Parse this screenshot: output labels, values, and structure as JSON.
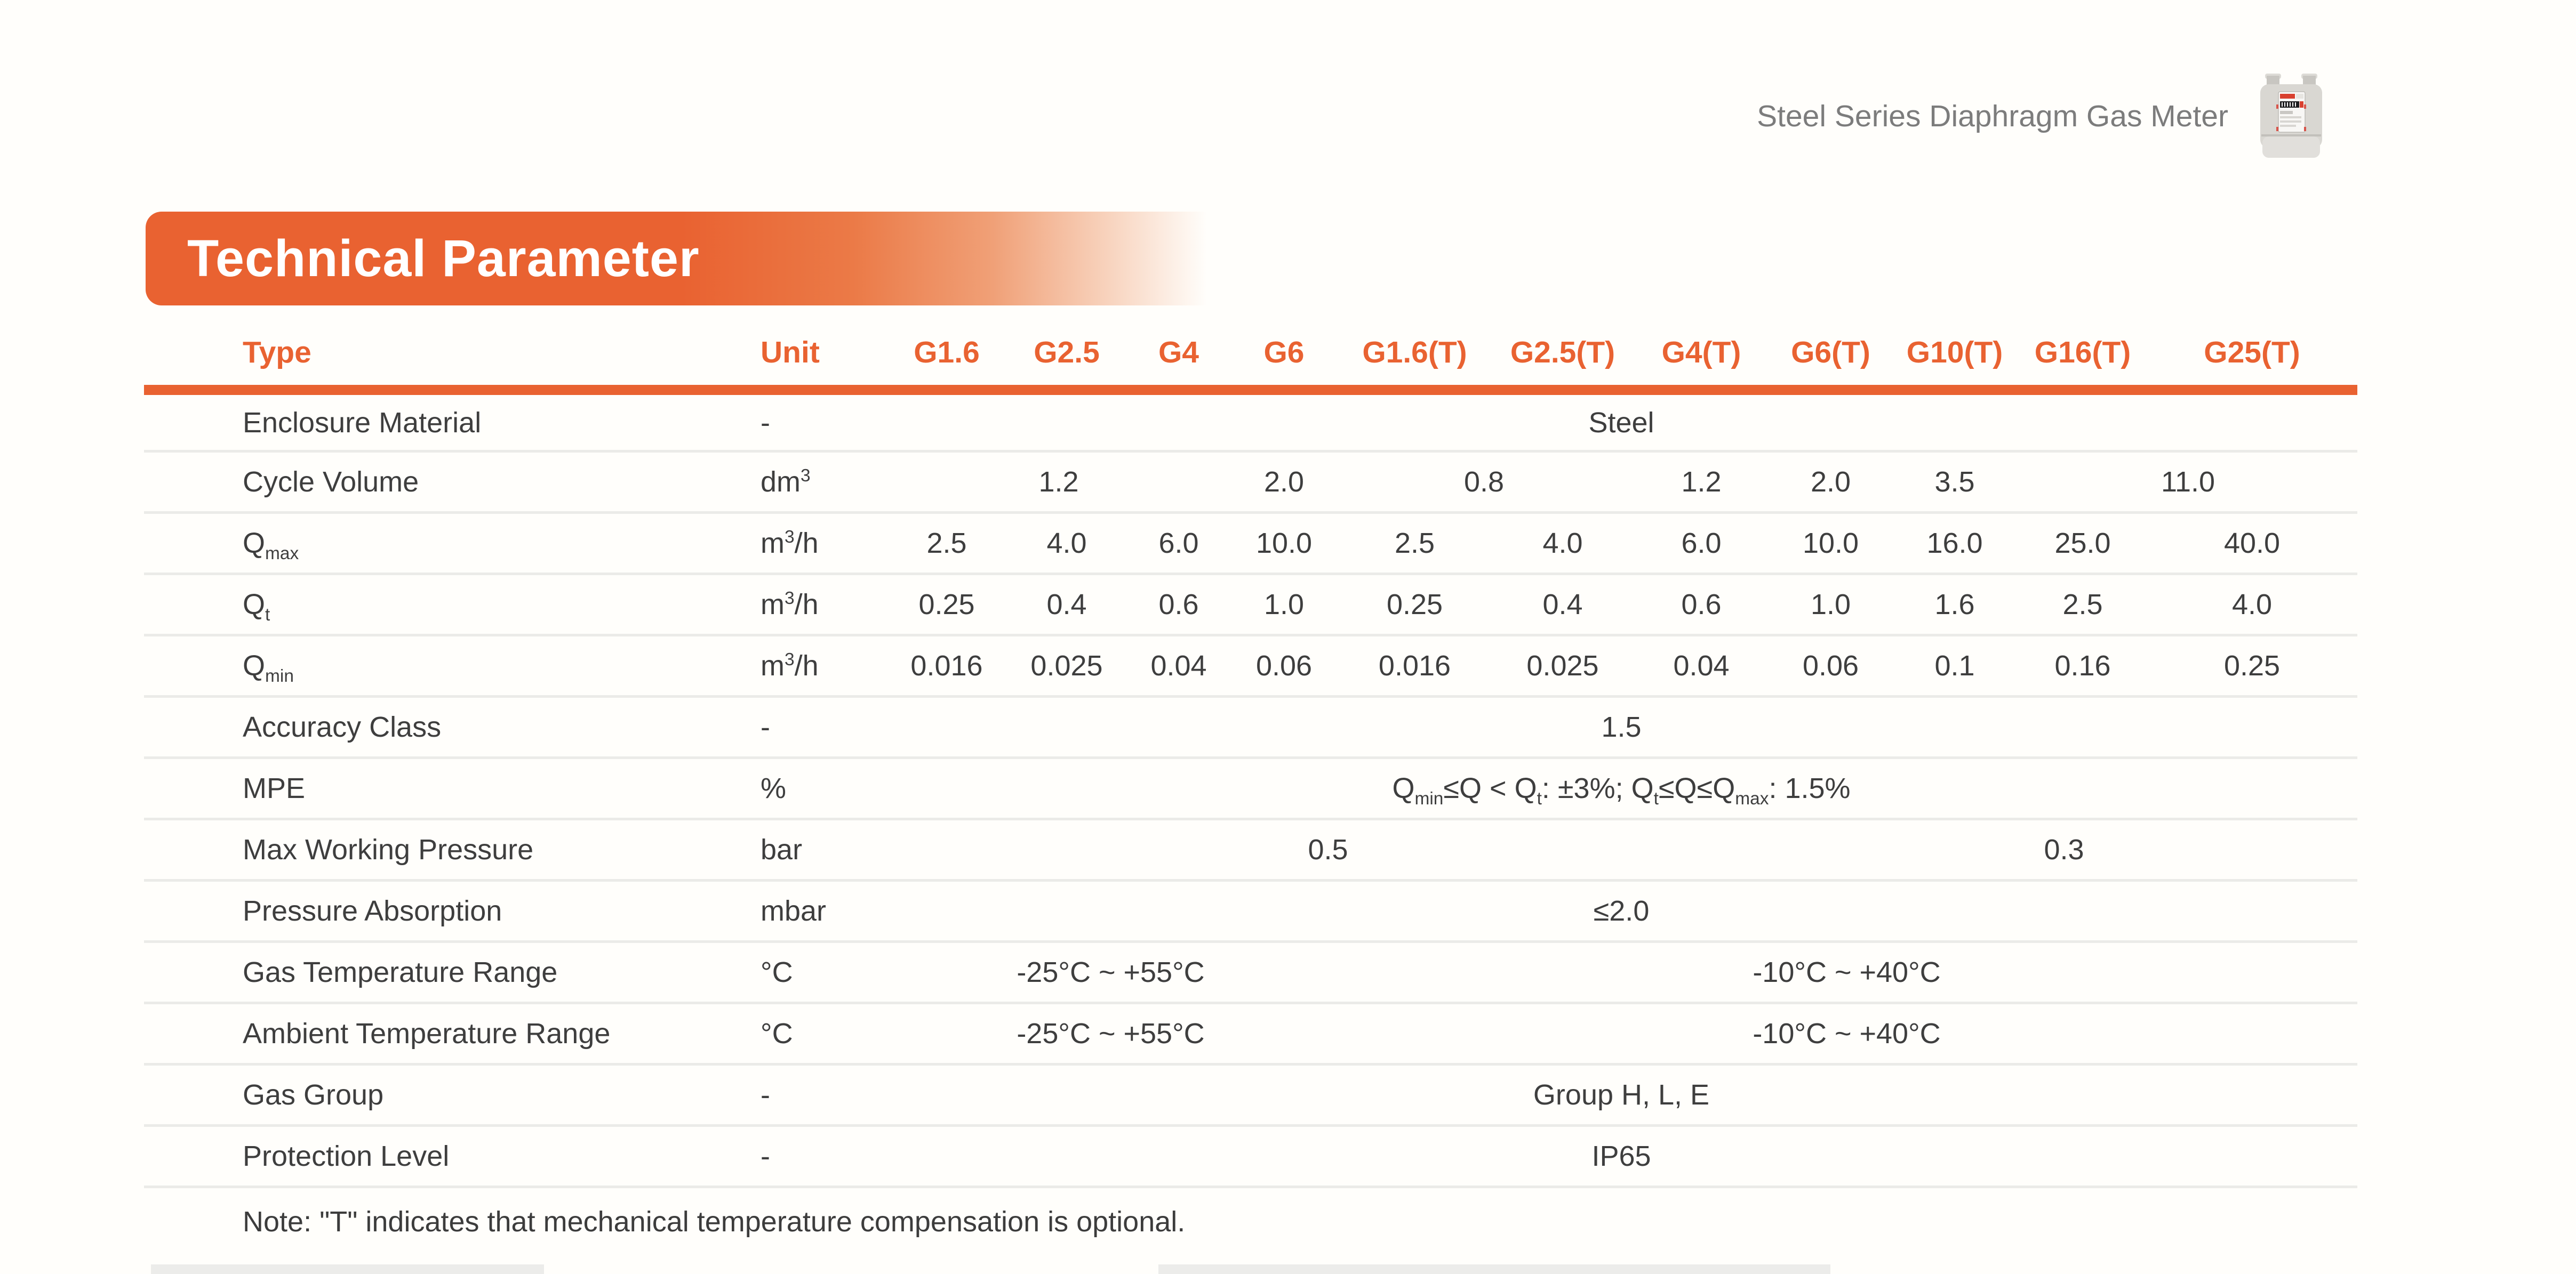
{
  "page": {
    "product_title": "Steel Series Diaphragm Gas Meter",
    "section_title": "Technical Parameter",
    "accent_color": "#E96231",
    "note": "Note: \"T\" indicates that mechanical temperature compensation is optional."
  },
  "table": {
    "columns": {
      "type": "Type",
      "unit": "Unit",
      "models": [
        "G1.6",
        "G2.5",
        "G4",
        "G6",
        "G1.6(T)",
        "G2.5(T)",
        "G4(T)",
        "G6(T)",
        "G10(T)",
        "G16(T)",
        "G25(T)"
      ]
    },
    "rows": [
      {
        "label": "Enclosure Material",
        "unit": "-",
        "cells": [
          {
            "text": "Steel",
            "span": 11
          }
        ]
      },
      {
        "label": "Cycle Volume",
        "unit": "dm^{3}",
        "cells": [
          {
            "text": "1.2",
            "span": 3
          },
          {
            "text": "2.0",
            "span": 1
          },
          {
            "text": "0.8",
            "span": 2
          },
          {
            "text": "1.2",
            "span": 1
          },
          {
            "text": "2.0",
            "span": 1
          },
          {
            "text": "3.5",
            "span": 1
          },
          {
            "text": "11.0",
            "span": 2
          }
        ]
      },
      {
        "label": "Q_{max}",
        "unit": "m^{3}/h",
        "cells": [
          {
            "text": "2.5",
            "span": 1
          },
          {
            "text": "4.0",
            "span": 1
          },
          {
            "text": "6.0",
            "span": 1
          },
          {
            "text": "10.0",
            "span": 1
          },
          {
            "text": "2.5",
            "span": 1
          },
          {
            "text": "4.0",
            "span": 1
          },
          {
            "text": "6.0",
            "span": 1
          },
          {
            "text": "10.0",
            "span": 1
          },
          {
            "text": "16.0",
            "span": 1
          },
          {
            "text": "25.0",
            "span": 1
          },
          {
            "text": "40.0",
            "span": 1
          }
        ]
      },
      {
        "label": "Q_{t}",
        "unit": "m^{3}/h",
        "cells": [
          {
            "text": "0.25",
            "span": 1
          },
          {
            "text": "0.4",
            "span": 1
          },
          {
            "text": "0.6",
            "span": 1
          },
          {
            "text": "1.0",
            "span": 1
          },
          {
            "text": "0.25",
            "span": 1
          },
          {
            "text": "0.4",
            "span": 1
          },
          {
            "text": "0.6",
            "span": 1
          },
          {
            "text": "1.0",
            "span": 1
          },
          {
            "text": "1.6",
            "span": 1
          },
          {
            "text": "2.5",
            "span": 1
          },
          {
            "text": "4.0",
            "span": 1
          }
        ]
      },
      {
        "label": "Q_{min}",
        "unit": "m^{3}/h",
        "cells": [
          {
            "text": "0.016",
            "span": 1
          },
          {
            "text": "0.025",
            "span": 1
          },
          {
            "text": "0.04",
            "span": 1
          },
          {
            "text": "0.06",
            "span": 1
          },
          {
            "text": "0.016",
            "span": 1
          },
          {
            "text": "0.025",
            "span": 1
          },
          {
            "text": "0.04",
            "span": 1
          },
          {
            "text": "0.06",
            "span": 1
          },
          {
            "text": "0.1",
            "span": 1
          },
          {
            "text": "0.16",
            "span": 1
          },
          {
            "text": "0.25",
            "span": 1
          }
        ]
      },
      {
        "label": "Accuracy Class",
        "unit": "-",
        "cells": [
          {
            "text": "1.5",
            "span": 11
          }
        ]
      },
      {
        "label": "MPE",
        "unit": "%",
        "cells": [
          {
            "text": "Q_{min}≤Q < Q_{t}: ±3%; Q_{t}≤Q≤Q_{max}: 1.5%",
            "span": 11
          }
        ]
      },
      {
        "label": "Max Working Pressure",
        "unit": "bar",
        "cells": [
          {
            "text": "0.5",
            "span": 7
          },
          {
            "text": "0.3",
            "span": 4
          }
        ]
      },
      {
        "label": "Pressure Absorption",
        "unit": "mbar",
        "cells": [
          {
            "text": "≤2.0",
            "span": 11
          }
        ]
      },
      {
        "label": "Gas Temperature Range",
        "unit": "°C",
        "cells": [
          {
            "text": "-25°C ~ +55°C",
            "span": 4
          },
          {
            "text": "-10°C ~ +40°C",
            "span": 7
          }
        ]
      },
      {
        "label": "Ambient Temperature Range",
        "unit": "°C",
        "cells": [
          {
            "text": "-25°C ~ +55°C",
            "span": 4
          },
          {
            "text": "-10°C ~ +40°C",
            "span": 7
          }
        ]
      },
      {
        "label": "Gas Group",
        "unit": "-",
        "cells": [
          {
            "text": "Group H, L, E",
            "span": 11
          }
        ]
      },
      {
        "label": "Protection Level",
        "unit": "-",
        "cells": [
          {
            "text": "IP65",
            "span": 11
          }
        ]
      }
    ]
  }
}
